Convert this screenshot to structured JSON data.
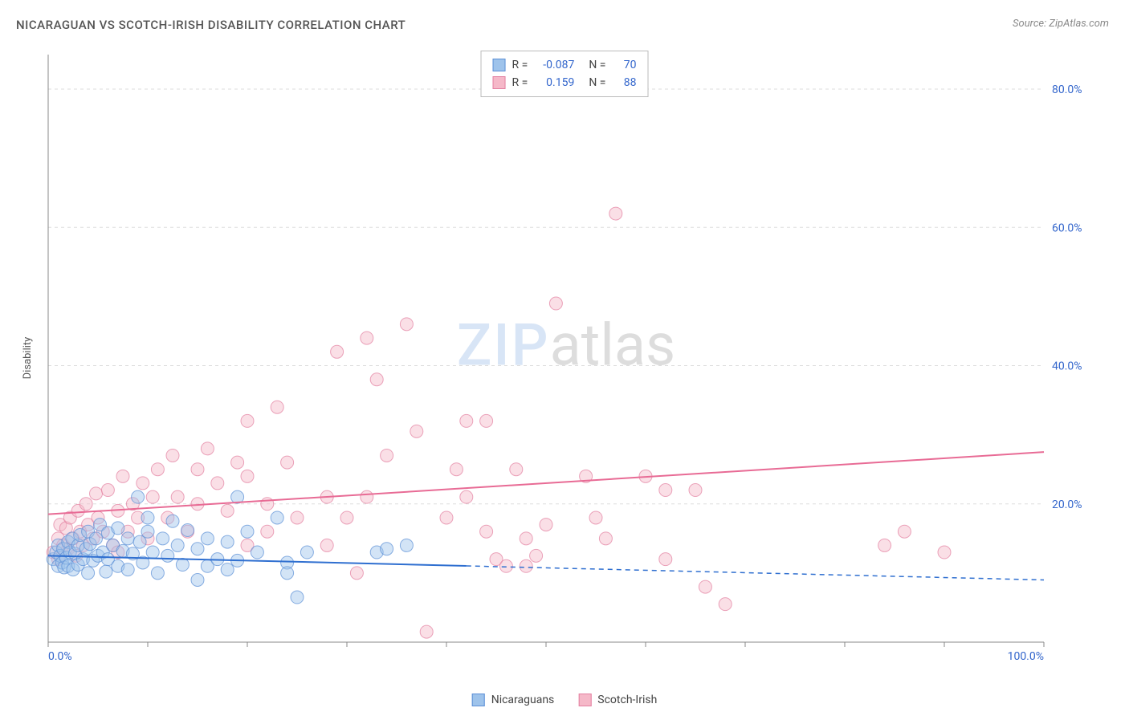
{
  "title": "NICARAGUAN VS SCOTCH-IRISH DISABILITY CORRELATION CHART",
  "source": "Source: ZipAtlas.com",
  "ylabel": "Disability",
  "watermark": {
    "a": "ZIP",
    "b": "atlas"
  },
  "chart": {
    "type": "scatter",
    "xlim": [
      0,
      100
    ],
    "ylim": [
      0,
      85
    ],
    "x_ticks": [
      0,
      10,
      20,
      30,
      40,
      50,
      60,
      70,
      80,
      90,
      100
    ],
    "y_ticks": [
      20,
      40,
      60,
      80
    ],
    "x_tick_labels": {
      "0": "0.0%",
      "100": "100.0%"
    },
    "y_tick_labels": {
      "20": "20.0%",
      "40": "40.0%",
      "60": "60.0%",
      "80": "80.0%"
    },
    "grid_color": "#dddddd",
    "axis_color": "#888888",
    "tick_label_color": "#3366cc",
    "background_color": "#ffffff",
    "marker_radius": 8,
    "marker_opacity": 0.45,
    "series": [
      {
        "name": "Nicaraguans",
        "fill": "#9ec3eb",
        "stroke": "#5a8fd6",
        "R": "-0.087",
        "N": "70",
        "trend": {
          "y_at_x0": 12.5,
          "y_at_x100": 9.0,
          "solid_until_x": 42,
          "color": "#2f6fd0",
          "width": 2
        },
        "points": [
          [
            0.5,
            12
          ],
          [
            0.8,
            13
          ],
          [
            1,
            11
          ],
          [
            1,
            14
          ],
          [
            1.2,
            12.5
          ],
          [
            1.4,
            11.5
          ],
          [
            1.5,
            13.5
          ],
          [
            1.6,
            10.8
          ],
          [
            1.8,
            12.2
          ],
          [
            2,
            14.5
          ],
          [
            2,
            11
          ],
          [
            2.2,
            13
          ],
          [
            2.4,
            15
          ],
          [
            2.5,
            10.5
          ],
          [
            2.7,
            12.8
          ],
          [
            3,
            14
          ],
          [
            3,
            11.2
          ],
          [
            3.2,
            15.5
          ],
          [
            3.5,
            12
          ],
          [
            3.8,
            13.5
          ],
          [
            4,
            16
          ],
          [
            4,
            10
          ],
          [
            4.2,
            14.2
          ],
          [
            4.5,
            11.8
          ],
          [
            4.8,
            15
          ],
          [
            5,
            12.5
          ],
          [
            5.2,
            17
          ],
          [
            5.5,
            13
          ],
          [
            5.8,
            10.2
          ],
          [
            6,
            15.8
          ],
          [
            6,
            12
          ],
          [
            6.5,
            14
          ],
          [
            7,
            11
          ],
          [
            7,
            16.5
          ],
          [
            7.5,
            13.2
          ],
          [
            8,
            10.5
          ],
          [
            8,
            15
          ],
          [
            8.5,
            12.8
          ],
          [
            9,
            21
          ],
          [
            9.2,
            14.5
          ],
          [
            9.5,
            11.5
          ],
          [
            10,
            16
          ],
          [
            10,
            18
          ],
          [
            10.5,
            13
          ],
          [
            11,
            10
          ],
          [
            11.5,
            15
          ],
          [
            12,
            12.5
          ],
          [
            12.5,
            17.5
          ],
          [
            13,
            14
          ],
          [
            13.5,
            11.2
          ],
          [
            14,
            16.2
          ],
          [
            15,
            9
          ],
          [
            15,
            13.5
          ],
          [
            16,
            11
          ],
          [
            16,
            15
          ],
          [
            17,
            12
          ],
          [
            18,
            10.5
          ],
          [
            18,
            14.5
          ],
          [
            19,
            21
          ],
          [
            19,
            11.8
          ],
          [
            20,
            16
          ],
          [
            21,
            13
          ],
          [
            23,
            18
          ],
          [
            24,
            11.5
          ],
          [
            24,
            10
          ],
          [
            25,
            6.5
          ],
          [
            26,
            13
          ],
          [
            33,
            13
          ],
          [
            34,
            13.5
          ],
          [
            36,
            14
          ]
        ]
      },
      {
        "name": "Scotch-Irish",
        "fill": "#f5b8c8",
        "stroke": "#e37fa0",
        "R": "0.159",
        "N": "88",
        "trend": {
          "y_at_x0": 18.5,
          "y_at_x100": 27.5,
          "solid_until_x": 100,
          "color": "#e86b95",
          "width": 2
        },
        "points": [
          [
            0.5,
            13
          ],
          [
            1,
            15
          ],
          [
            1,
            12
          ],
          [
            1.2,
            17
          ],
          [
            1.5,
            14
          ],
          [
            1.8,
            16.5
          ],
          [
            2,
            13.5
          ],
          [
            2.2,
            18
          ],
          [
            2.5,
            15
          ],
          [
            2.8,
            12.5
          ],
          [
            3,
            19
          ],
          [
            3.2,
            16
          ],
          [
            3.5,
            14
          ],
          [
            3.8,
            20
          ],
          [
            4,
            17
          ],
          [
            4.5,
            15
          ],
          [
            4.8,
            21.5
          ],
          [
            5,
            18
          ],
          [
            5.5,
            16
          ],
          [
            6,
            22
          ],
          [
            6.5,
            14
          ],
          [
            7,
            13
          ],
          [
            7,
            19
          ],
          [
            7.5,
            24
          ],
          [
            8,
            16
          ],
          [
            8.5,
            20
          ],
          [
            9,
            18
          ],
          [
            9.5,
            23
          ],
          [
            10,
            15
          ],
          [
            10.5,
            21
          ],
          [
            11,
            25
          ],
          [
            12,
            18
          ],
          [
            12.5,
            27
          ],
          [
            13,
            21
          ],
          [
            14,
            16
          ],
          [
            15,
            25
          ],
          [
            15,
            20
          ],
          [
            16,
            28
          ],
          [
            17,
            23
          ],
          [
            18,
            19
          ],
          [
            19,
            26
          ],
          [
            20,
            24
          ],
          [
            20,
            32
          ],
          [
            20,
            14
          ],
          [
            22,
            20
          ],
          [
            22,
            16
          ],
          [
            23,
            34
          ],
          [
            24,
            26
          ],
          [
            25,
            18
          ],
          [
            28,
            21
          ],
          [
            28,
            14
          ],
          [
            29,
            42
          ],
          [
            30,
            18
          ],
          [
            31,
            10
          ],
          [
            32,
            21
          ],
          [
            33,
            38
          ],
          [
            32,
            44
          ],
          [
            34,
            27
          ],
          [
            36,
            46
          ],
          [
            37,
            30.5
          ],
          [
            38,
            1.5
          ],
          [
            40,
            18
          ],
          [
            41,
            25
          ],
          [
            42,
            21
          ],
          [
            42,
            32
          ],
          [
            44,
            16
          ],
          [
            44,
            32
          ],
          [
            45,
            12
          ],
          [
            46,
            11
          ],
          [
            47,
            25
          ],
          [
            48,
            15
          ],
          [
            49,
            12.5
          ],
          [
            50,
            17
          ],
          [
            51,
            49
          ],
          [
            54,
            24
          ],
          [
            55,
            18
          ],
          [
            56,
            15
          ],
          [
            57,
            62
          ],
          [
            60,
            24
          ],
          [
            62,
            22
          ],
          [
            62,
            12
          ],
          [
            65,
            22
          ],
          [
            66,
            8
          ],
          [
            68,
            5.5
          ],
          [
            84,
            14
          ],
          [
            86,
            16
          ],
          [
            90,
            13
          ],
          [
            48,
            11
          ]
        ]
      }
    ]
  },
  "legend_top": {
    "rows": [
      {
        "sq_fill": "#9ec3eb",
        "sq_stroke": "#5a8fd6",
        "r_lbl": "R =",
        "r_val": "-0.087",
        "n_lbl": "N =",
        "n_val": "70"
      },
      {
        "sq_fill": "#f5b8c8",
        "sq_stroke": "#e37fa0",
        "r_lbl": "R =",
        "r_val": "0.159",
        "n_lbl": "N =",
        "n_val": "88"
      }
    ]
  },
  "legend_bottom": {
    "items": [
      {
        "sq_fill": "#9ec3eb",
        "sq_stroke": "#5a8fd6",
        "label": "Nicaraguans"
      },
      {
        "sq_fill": "#f5b8c8",
        "sq_stroke": "#e37fa0",
        "label": "Scotch-Irish"
      }
    ]
  }
}
